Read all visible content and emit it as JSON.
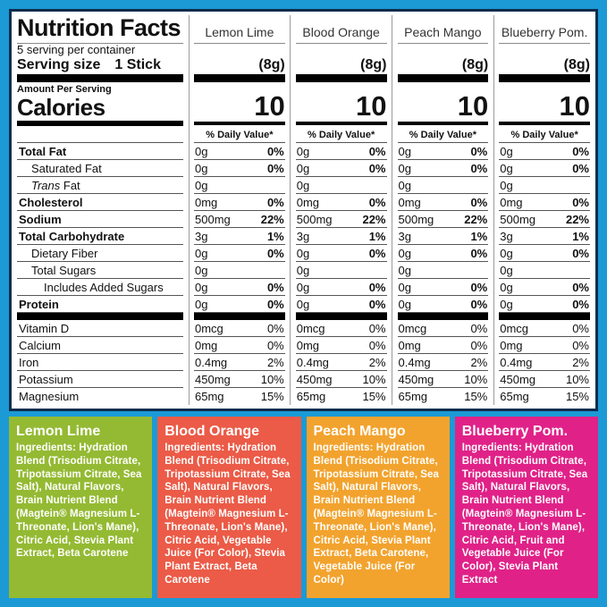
{
  "frame": {
    "border_color": "#1b9ad6",
    "panel_border_color": "#0c2e4e"
  },
  "panel": {
    "title": "Nutrition Facts",
    "servings_per_container": "5 serving per container",
    "serving_size_label": "Serving size",
    "serving_size_value": "1 Stick",
    "amount_per_serving": "Amount Per Serving",
    "calories_label": "Calories",
    "daily_value_header": "% Daily Value*",
    "flavors": [
      {
        "name": "Lemon Lime",
        "serving": "(8g)",
        "calories": "10"
      },
      {
        "name": "Blood Orange",
        "serving": "(8g)",
        "calories": "10"
      },
      {
        "name": "Peach Mango",
        "serving": "(8g)",
        "calories": "10"
      },
      {
        "name": "Blueberry Pom.",
        "serving": "(8g)",
        "calories": "10"
      }
    ],
    "rows": [
      {
        "label": "Total Fat",
        "bold": true,
        "indent": 0,
        "amount": "0g",
        "dv": "0%",
        "dv_bold": true
      },
      {
        "label": "Saturated Fat",
        "bold": false,
        "indent": 1,
        "amount": "0g",
        "dv": "0%",
        "dv_bold": true
      },
      {
        "label": "Trans Fat",
        "bold": false,
        "indent": 1,
        "italic_first_word": true,
        "amount": "0g",
        "dv": "",
        "dv_bold": false
      },
      {
        "label": "Cholesterol",
        "bold": true,
        "indent": 0,
        "amount": "0mg",
        "dv": "0%",
        "dv_bold": true
      },
      {
        "label": "Sodium",
        "bold": true,
        "indent": 0,
        "amount": "500mg",
        "dv": "22%",
        "dv_bold": true
      },
      {
        "label": "Total Carbohydrate",
        "bold": true,
        "indent": 0,
        "amount": "3g",
        "dv": "1%",
        "dv_bold": true
      },
      {
        "label": "Dietary Fiber",
        "bold": false,
        "indent": 1,
        "amount": "0g",
        "dv": "0%",
        "dv_bold": true
      },
      {
        "label": "Total Sugars",
        "bold": false,
        "indent": 1,
        "amount": "0g",
        "dv": "",
        "dv_bold": false
      },
      {
        "label": "Includes Added Sugars",
        "bold": false,
        "indent": 2,
        "amount": "0g",
        "dv": "0%",
        "dv_bold": true
      },
      {
        "label": "Protein",
        "bold": true,
        "indent": 0,
        "amount": "0g",
        "dv": "0%",
        "dv_bold": true
      },
      {
        "divider": true
      },
      {
        "label": "Vitamin D",
        "bold": false,
        "indent": 0,
        "amount": "0mcg",
        "dv": "0%",
        "dv_bold": false
      },
      {
        "label": "Calcium",
        "bold": false,
        "indent": 0,
        "amount": "0mg",
        "dv": "0%",
        "dv_bold": false
      },
      {
        "label": "Iron",
        "bold": false,
        "indent": 0,
        "amount": "0.4mg",
        "dv": "2%",
        "dv_bold": false
      },
      {
        "label": "Potassium",
        "bold": false,
        "indent": 0,
        "amount": "450mg",
        "dv": "10%",
        "dv_bold": false
      },
      {
        "label": "Magnesium",
        "bold": false,
        "indent": 0,
        "amount": "65mg",
        "dv": "15%",
        "dv_bold": false
      }
    ]
  },
  "ingredients": [
    {
      "flavor": "Lemon Lime",
      "color": "#94ba33",
      "text": "Ingredients: Hydration Blend (Trisodium Citrate, Tripotassium Citrate, Sea Salt), Natural Flavors, Brain Nutrient Blend (Magtein® Magnesium L-Threonate, Lion's Mane), Citric Acid, Stevia Plant Extract, Beta Carotene"
    },
    {
      "flavor": "Blood Orange",
      "color": "#eb5b47",
      "text": "Ingredients: Hydration Blend (Trisodium Citrate, Tripotassium Citrate, Sea Salt), Natural Flavors, Brain Nutrient Blend (Magtein® Magnesium L-Threonate, Lion's Mane), Citric Acid, Vegetable Juice (For Color), Stevia Plant Extract, Beta Carotene"
    },
    {
      "flavor": "Peach Mango",
      "color": "#f2a32e",
      "text": "Ingredients: Hydration Blend (Trisodium Citrate, Tripotassium Citrate, Sea Salt), Natural Flavors, Brain Nutrient Blend (Magtein® Magnesium L-Threonate, Lion's Mane), Citric Acid, Stevia Plant Extract, Beta Carotene, Vegetable Juice (For Color)"
    },
    {
      "flavor": "Blueberry Pom.",
      "color": "#e02288",
      "text": "Ingredients: Hydration Blend (Trisodium Citrate, Tripotassium Citrate, Sea Salt), Natural Flavors, Brain Nutrient Blend (Magtein® Magnesium L-Threonate, Lion's Mane), Citric Acid, Fruit and Vegetable Juice (For Color), Stevia Plant Extract"
    }
  ]
}
